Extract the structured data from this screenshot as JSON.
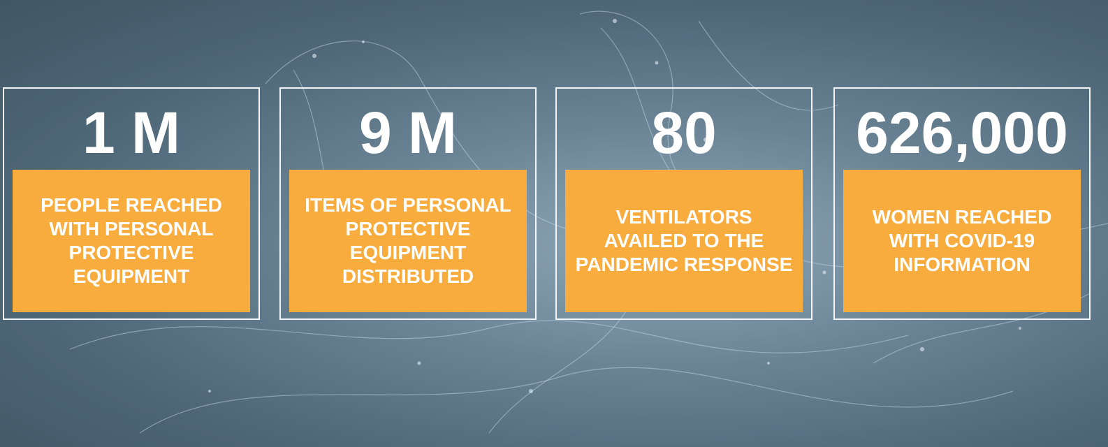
{
  "cards": [
    {
      "value": "1 M",
      "label": "PEOPLE REACHED WITH PERSONAL PROTECTIVE EQUIPMENT"
    },
    {
      "value": "9 M",
      "label": "ITEMS OF PERSONAL PROTECTIVE EQUIPMENT DISTRIBUTED"
    },
    {
      "value": "80",
      "label": "VENTILATORS AVAILED TO THE PANDEMIC RESPONSE"
    },
    {
      "value": "626,000",
      "label": "WOMEN REACHED WITH COVID-19 INFORMATION"
    }
  ]
}
